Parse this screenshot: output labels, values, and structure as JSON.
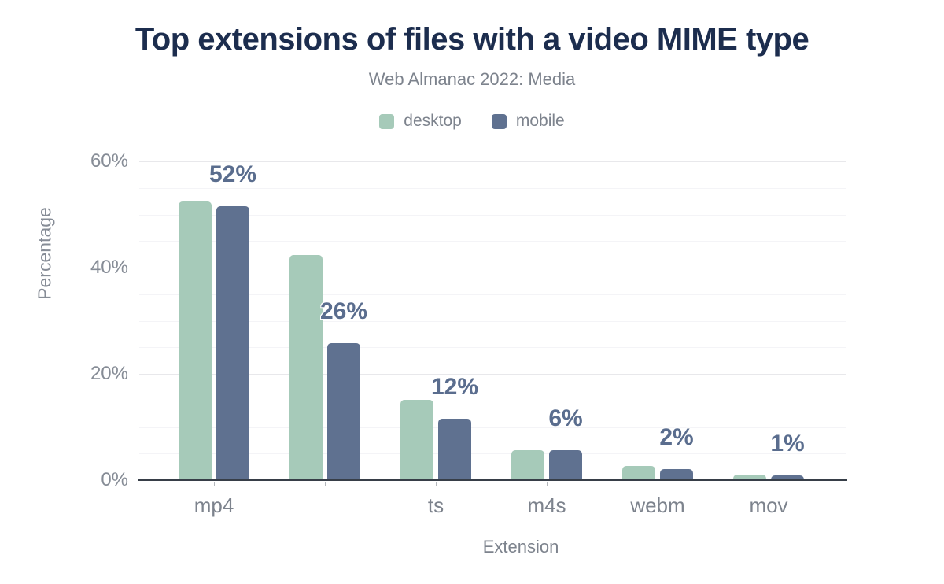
{
  "chart_data": {
    "type": "bar",
    "title": "Top extensions of files with a video MIME type",
    "subtitle": "Web Almanac 2022: Media",
    "xlabel": "Extension",
    "ylabel": "Percentage",
    "ylim": [
      0,
      60
    ],
    "yticks": [
      {
        "value": 0,
        "label": "0%"
      },
      {
        "value": 20,
        "label": "20%"
      },
      {
        "value": 40,
        "label": "40%"
      },
      {
        "value": 60,
        "label": "60%"
      }
    ],
    "minor_grid_step": 5,
    "grid": true,
    "legend_position": "top",
    "categories": [
      "mp4",
      "",
      "ts",
      "m4s",
      "webm",
      "mov"
    ],
    "series": [
      {
        "name": "desktop",
        "color": "#a6cab9",
        "values": [
          52.4,
          42.3,
          15.1,
          5.6,
          2.6,
          1.0
        ]
      },
      {
        "name": "mobile",
        "color": "#5f7190",
        "values": [
          51.5,
          25.8,
          11.5,
          5.7,
          2.1,
          0.9
        ]
      }
    ],
    "bar_labels": [
      "52%",
      "26%",
      "12%",
      "6%",
      "2%",
      "1%"
    ],
    "bar_labels_series": "mobile"
  },
  "colors": {
    "title": "#1c2d4e",
    "muted_text": "#7d838d",
    "axis_text": "#868c96",
    "value_label": "#5a6d8e",
    "axis_line": "#373e48",
    "grid_major": "#e8e8eb",
    "grid_minor": "#f4f4f7",
    "desktop": "#a6cab9",
    "mobile": "#5f7190",
    "background": "#ffffff"
  }
}
